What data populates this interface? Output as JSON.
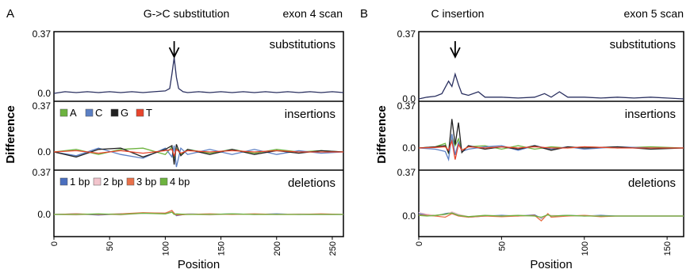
{
  "figure": {
    "ylabel": "Difference",
    "xlabel": "Position",
    "series_colors": {
      "A": "#6db33f",
      "C": "#5b7fc4",
      "G": "#222222",
      "T": "#e8452c"
    },
    "deletion_colors": {
      "1 bp": "#4a6fbf",
      "2 bp": "#f2c4cc",
      "3 bp": "#e8714a",
      "4 bp": "#6db33f"
    },
    "trace_color": "#2a3060"
  },
  "chart_data": [
    {
      "type": "line",
      "panel": "A",
      "title": "G->C substitution",
      "scan": "exon 4 scan",
      "xlabel": "Position",
      "ylabel": "Difference",
      "xlim": [
        0,
        260
      ],
      "xticks": [
        0,
        50,
        100,
        150,
        200,
        250
      ],
      "subplots": [
        {
          "name": "substitutions",
          "ylim": [
            0,
            0.37
          ],
          "yticks": [
            "0.37",
            "0.0"
          ],
          "annotation": "arrow at position 108",
          "series": [
            {
              "name": "substitution",
              "x": [
                0,
                10,
                20,
                30,
                40,
                50,
                60,
                70,
                80,
                90,
                100,
                104,
                106,
                108,
                110,
                112,
                116,
                120,
                130,
                140,
                150,
                160,
                170,
                180,
                190,
                200,
                210,
                220,
                230,
                240,
                250,
                260
              ],
              "y": [
                0.0,
                0.01,
                0.005,
                0.01,
                0.005,
                0.01,
                0.005,
                0.01,
                0.005,
                0.01,
                0.015,
                0.03,
                0.12,
                0.22,
                0.1,
                0.03,
                0.01,
                0.005,
                0.01,
                0.005,
                0.01,
                0.005,
                0.01,
                0.005,
                0.01,
                0.005,
                0.01,
                0.005,
                0.01,
                0.005,
                0.01,
                0.005
              ]
            }
          ]
        },
        {
          "name": "insertions",
          "ylim": [
            -0.2,
            0.37
          ],
          "yticks": [
            "0.37",
            "0.0"
          ],
          "legend": [
            "A",
            "C",
            "G",
            "T"
          ],
          "series": [
            {
              "name": "A",
              "x": [
                0,
                20,
                40,
                60,
                80,
                100,
                106,
                108,
                110,
                114,
                120,
                140,
                160,
                180,
                200,
                220,
                240,
                260
              ],
              "y": [
                0,
                0.02,
                -0.02,
                0.02,
                0.03,
                -0.02,
                0.04,
                -0.05,
                0.03,
                -0.02,
                0.02,
                -0.01,
                0.02,
                -0.01,
                0.02,
                0,
                0.01,
                0
              ]
            },
            {
              "name": "C",
              "x": [
                0,
                20,
                40,
                60,
                80,
                100,
                106,
                108,
                110,
                114,
                120,
                140,
                160,
                180,
                200,
                220,
                240,
                260
              ],
              "y": [
                0,
                -0.03,
                0.03,
                -0.02,
                -0.05,
                0.03,
                -0.04,
                0.05,
                -0.12,
                0.03,
                -0.02,
                0.02,
                -0.02,
                0.02,
                -0.02,
                0.01,
                -0.01,
                0
              ]
            },
            {
              "name": "G",
              "x": [
                0,
                20,
                40,
                60,
                80,
                100,
                106,
                108,
                110,
                114,
                120,
                140,
                160,
                180,
                200,
                220,
                240,
                260
              ],
              "y": [
                0,
                -0.04,
                0.02,
                0.03,
                -0.04,
                0.02,
                0.05,
                -0.1,
                0.06,
                -0.03,
                0.02,
                -0.02,
                0.02,
                -0.02,
                0.01,
                -0.01,
                0.01,
                0
              ]
            },
            {
              "name": "T",
              "x": [
                0,
                20,
                40,
                60,
                80,
                100,
                106,
                108,
                110,
                114,
                120,
                140,
                160,
                180,
                200,
                220,
                240,
                260
              ],
              "y": [
                0,
                0.01,
                -0.01,
                0.01,
                -0.01,
                0.01,
                0.02,
                -0.03,
                0.02,
                -0.01,
                0.01,
                0,
                0.01,
                0,
                0.01,
                0,
                0,
                0
              ]
            }
          ]
        },
        {
          "name": "deletions",
          "ylim": [
            -0.1,
            0.37
          ],
          "yticks": [
            "0.37",
            "0.0"
          ],
          "legend": [
            "1 bp",
            "2 bp",
            "3 bp",
            "4 bp"
          ],
          "series": [
            {
              "name": "1 bp",
              "x": [
                0,
                20,
                40,
                60,
                80,
                100,
                106,
                108,
                110,
                120,
                140,
                160,
                180,
                200,
                220,
                240,
                260
              ],
              "y": [
                0,
                0.005,
                -0.005,
                0.005,
                0.01,
                0.01,
                0.03,
                0.01,
                -0.01,
                0.005,
                0,
                0.005,
                0,
                0.005,
                0,
                0,
                0
              ]
            },
            {
              "name": "2 bp",
              "x": [
                0,
                20,
                40,
                60,
                80,
                100,
                106,
                108,
                110,
                120,
                140,
                160,
                180,
                200,
                220,
                240,
                260
              ],
              "y": [
                0,
                -0.005,
                0.005,
                -0.005,
                0.01,
                0.015,
                0.025,
                0.005,
                0,
                0.005,
                -0.005,
                0.005,
                0,
                0,
                0.005,
                0,
                0
              ]
            },
            {
              "name": "3 bp",
              "x": [
                0,
                20,
                40,
                60,
                80,
                100,
                106,
                108,
                110,
                120,
                140,
                160,
                180,
                200,
                220,
                240,
                260
              ],
              "y": [
                0,
                0.005,
                0,
                0.005,
                0.015,
                0.01,
                0.035,
                0.01,
                -0.005,
                0,
                0.005,
                0,
                0.005,
                0,
                0,
                0.005,
                0
              ]
            },
            {
              "name": "4 bp",
              "x": [
                0,
                20,
                40,
                60,
                80,
                100,
                106,
                108,
                110,
                120,
                140,
                160,
                180,
                200,
                220,
                240,
                260
              ],
              "y": [
                0,
                0,
                0.005,
                0,
                0.01,
                0.005,
                0.02,
                0,
                0.005,
                0,
                0,
                0.005,
                0,
                0,
                0,
                0,
                0
              ]
            }
          ]
        }
      ]
    },
    {
      "type": "line",
      "panel": "B",
      "title": "C insertion",
      "scan": "exon 5 scan",
      "xlabel": "Position",
      "ylabel": "Difference",
      "xlim": [
        0,
        160
      ],
      "xticks": [
        0,
        50,
        100,
        150
      ],
      "subplots": [
        {
          "name": "substitutions",
          "ylim": [
            0,
            0.37
          ],
          "yticks": [
            "0.37",
            "0.0"
          ],
          "annotation": "arrow at position 22",
          "series": [
            {
              "name": "substitution",
              "x": [
                0,
                5,
                10,
                14,
                18,
                20,
                22,
                24,
                26,
                30,
                36,
                40,
                50,
                60,
                70,
                76,
                80,
                85,
                90,
                100,
                110,
                120,
                130,
                140,
                150,
                160
              ],
              "y": [
                0.0,
                0.01,
                0.015,
                0.03,
                0.1,
                0.07,
                0.14,
                0.08,
                0.03,
                0.02,
                0.04,
                0.01,
                0.01,
                0.005,
                0.01,
                0.03,
                0.01,
                0.04,
                0.01,
                0.01,
                0.005,
                0.01,
                0.005,
                0.01,
                0.005,
                0.0
              ]
            }
          ]
        },
        {
          "name": "insertions",
          "ylim": [
            -0.15,
            0.37
          ],
          "yticks": [
            "0.37",
            "0.0"
          ],
          "series": [
            {
              "name": "A",
              "x": [
                0,
                10,
                16,
                18,
                20,
                22,
                24,
                26,
                30,
                40,
                50,
                60,
                70,
                80,
                90,
                100,
                120,
                140,
                160
              ],
              "y": [
                0,
                0.01,
                0.04,
                -0.05,
                0.1,
                0.02,
                0.08,
                -0.02,
                0.01,
                0.02,
                -0.01,
                0.02,
                -0.01,
                0.01,
                0,
                0.01,
                0,
                0.01,
                0
              ]
            },
            {
              "name": "C",
              "x": [
                0,
                10,
                16,
                18,
                20,
                22,
                24,
                26,
                30,
                40,
                50,
                60,
                70,
                80,
                90,
                100,
                120,
                140,
                160
              ],
              "y": [
                0,
                -0.01,
                -0.03,
                -0.1,
                0.12,
                -0.06,
                0.05,
                -0.03,
                -0.01,
                0.01,
                0.02,
                -0.02,
                0.02,
                -0.01,
                0.01,
                -0.01,
                0.01,
                0,
                0
              ]
            },
            {
              "name": "G",
              "x": [
                0,
                10,
                16,
                18,
                20,
                22,
                24,
                26,
                30,
                40,
                50,
                60,
                70,
                80,
                90,
                100,
                120,
                140,
                160
              ],
              "y": [
                0,
                0.01,
                0.02,
                -0.04,
                0.25,
                0.03,
                0.22,
                -0.04,
                0.02,
                -0.01,
                0.01,
                -0.01,
                0.02,
                -0.02,
                0.01,
                0,
                0.01,
                -0.01,
                0
              ]
            },
            {
              "name": "T",
              "x": [
                0,
                10,
                16,
                18,
                20,
                22,
                24,
                26,
                30,
                40,
                50,
                60,
                70,
                80,
                90,
                100,
                120,
                140,
                160
              ],
              "y": [
                0,
                0.005,
                0.01,
                -0.02,
                0.06,
                -0.1,
                0.03,
                -0.02,
                0.01,
                0,
                0.01,
                0,
                0.01,
                0,
                0,
                0.01,
                0,
                0,
                0
              ]
            }
          ]
        },
        {
          "name": "deletions",
          "ylim": [
            -0.1,
            0.37
          ],
          "yticks": [
            "0.37",
            "0.0"
          ],
          "series": [
            {
              "name": "1 bp",
              "x": [
                0,
                5,
                10,
                16,
                20,
                24,
                30,
                40,
                50,
                60,
                70,
                74,
                78,
                80,
                90,
                100,
                110,
                120,
                140,
                160
              ],
              "y": [
                0.02,
                0.01,
                0,
                0.02,
                0.03,
                0.01,
                -0.01,
                0,
                0.005,
                0,
                0.01,
                -0.02,
                0.015,
                0,
                0.005,
                0,
                0.005,
                0,
                0,
                0
              ]
            },
            {
              "name": "2 bp",
              "x": [
                0,
                5,
                10,
                16,
                20,
                24,
                30,
                40,
                50,
                60,
                70,
                74,
                78,
                80,
                90,
                100,
                110,
                120,
                140,
                160
              ],
              "y": [
                0.03,
                0.015,
                0.005,
                0.01,
                0.035,
                0.015,
                -0.005,
                0.005,
                0,
                0.005,
                0,
                -0.015,
                0.01,
                0.005,
                0,
                0.005,
                0,
                0,
                0,
                0
              ]
            },
            {
              "name": "3 bp",
              "x": [
                0,
                5,
                10,
                16,
                20,
                24,
                30,
                40,
                50,
                60,
                70,
                74,
                78,
                80,
                90,
                100,
                110,
                120,
                140,
                160
              ],
              "y": [
                0.01,
                0.005,
                0,
                -0.01,
                0.02,
                0,
                -0.01,
                0,
                -0.005,
                0,
                0.005,
                -0.04,
                0.02,
                -0.01,
                0,
                0.005,
                -0.005,
                0,
                0,
                0
              ]
            },
            {
              "name": "4 bp",
              "x": [
                0,
                5,
                10,
                16,
                20,
                24,
                30,
                40,
                50,
                60,
                70,
                74,
                78,
                80,
                90,
                100,
                110,
                120,
                140,
                160
              ],
              "y": [
                0.005,
                0,
                0.005,
                0.015,
                0.025,
                0.005,
                -0.005,
                0.005,
                0,
                0.005,
                0,
                -0.01,
                0.01,
                0,
                0.005,
                0,
                0,
                0,
                0,
                0
              ]
            }
          ]
        }
      ]
    }
  ]
}
